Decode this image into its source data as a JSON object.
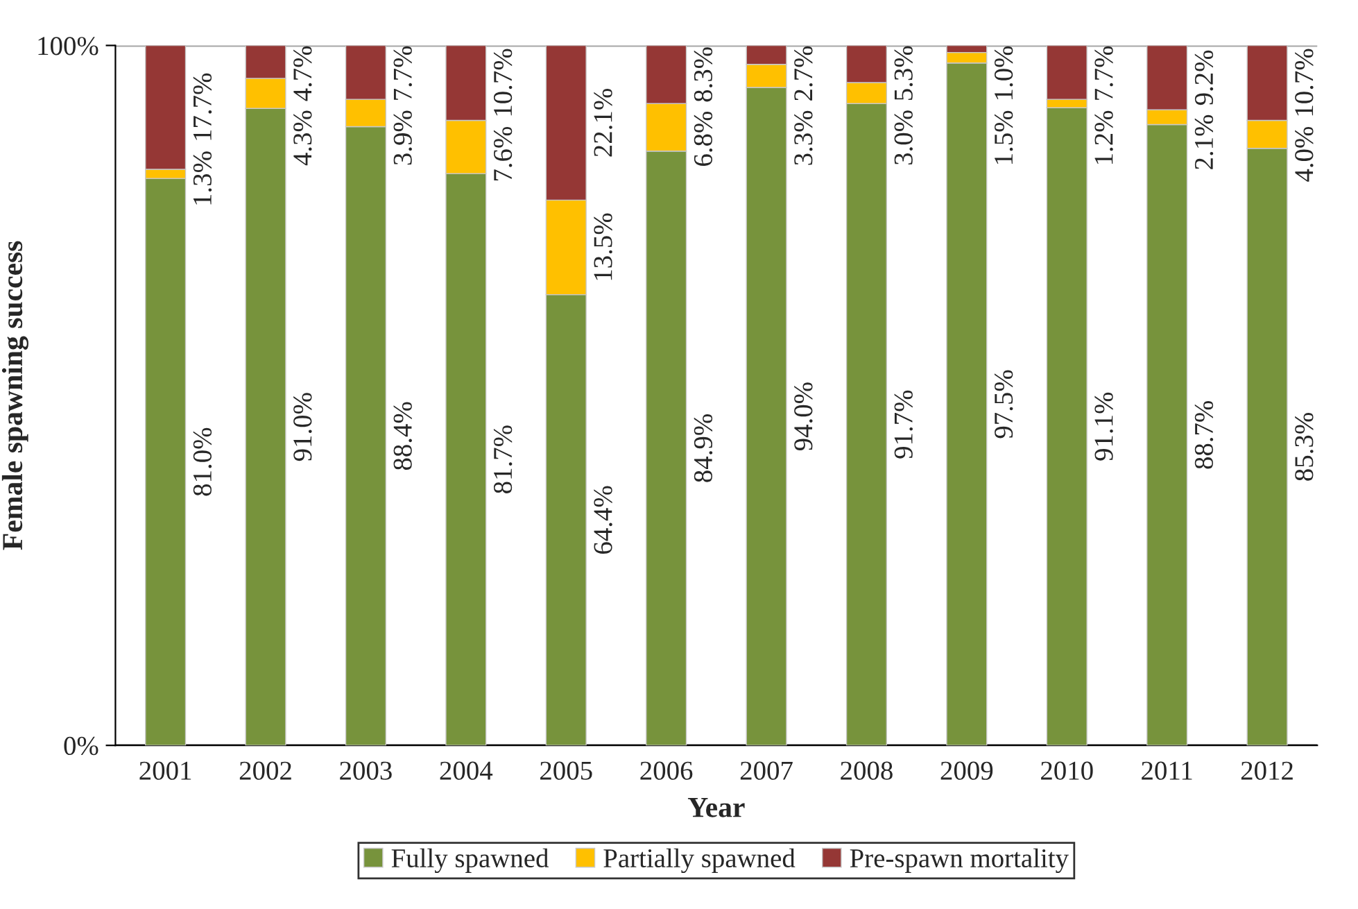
{
  "chart_data": {
    "type": "bar",
    "stacked": true,
    "xlabel": "Year",
    "ylabel": "Female spawning success",
    "categories": [
      "2001",
      "2002",
      "2003",
      "2004",
      "2005",
      "2006",
      "2007",
      "2008",
      "2009",
      "2010",
      "2011",
      "2012"
    ],
    "series": [
      {
        "name": "Fully spawned",
        "color": "#77933c",
        "values": [
          81.0,
          91.0,
          88.4,
          81.7,
          64.4,
          84.9,
          94.0,
          91.7,
          97.5,
          91.1,
          88.7,
          85.3
        ],
        "value_labels": [
          "81.0%",
          "91.0%",
          "88.4%",
          "81.7%",
          "64.4%",
          "84.9%",
          "94.0%",
          "91.7%",
          "97.5%",
          "91.1%",
          "88.7%",
          "85.3%"
        ]
      },
      {
        "name": "Partially spawned",
        "color": "#ffc000",
        "values": [
          1.3,
          4.3,
          3.9,
          7.6,
          13.5,
          6.8,
          3.3,
          3.0,
          1.5,
          1.2,
          2.1,
          4.0
        ],
        "value_labels": [
          "1.3%",
          "4.3%",
          "3.9%",
          "7.6%",
          "13.5%",
          "6.8%",
          "3.3%",
          "3.0%",
          "1.5%",
          "1.2%",
          "2.1%",
          "4.0%"
        ]
      },
      {
        "name": "Pre-spawn mortality",
        "color": "#953735",
        "values": [
          17.7,
          4.7,
          7.7,
          10.7,
          22.1,
          8.3,
          2.7,
          5.3,
          1.0,
          7.7,
          9.2,
          10.7
        ],
        "value_labels": [
          "17.7%",
          "4.7%",
          "7.7%",
          "10.7%",
          "22.1%",
          "8.3%",
          "2.7%",
          "5.3%",
          "1.0%",
          "7.7%",
          "9.2%",
          "10.7%"
        ]
      }
    ],
    "ylim": [
      0,
      100
    ],
    "yticks": [
      {
        "value": 0,
        "label": "0%"
      },
      {
        "value": 100,
        "label": "100%"
      }
    ],
    "grid": "y",
    "legend": "bottom"
  }
}
